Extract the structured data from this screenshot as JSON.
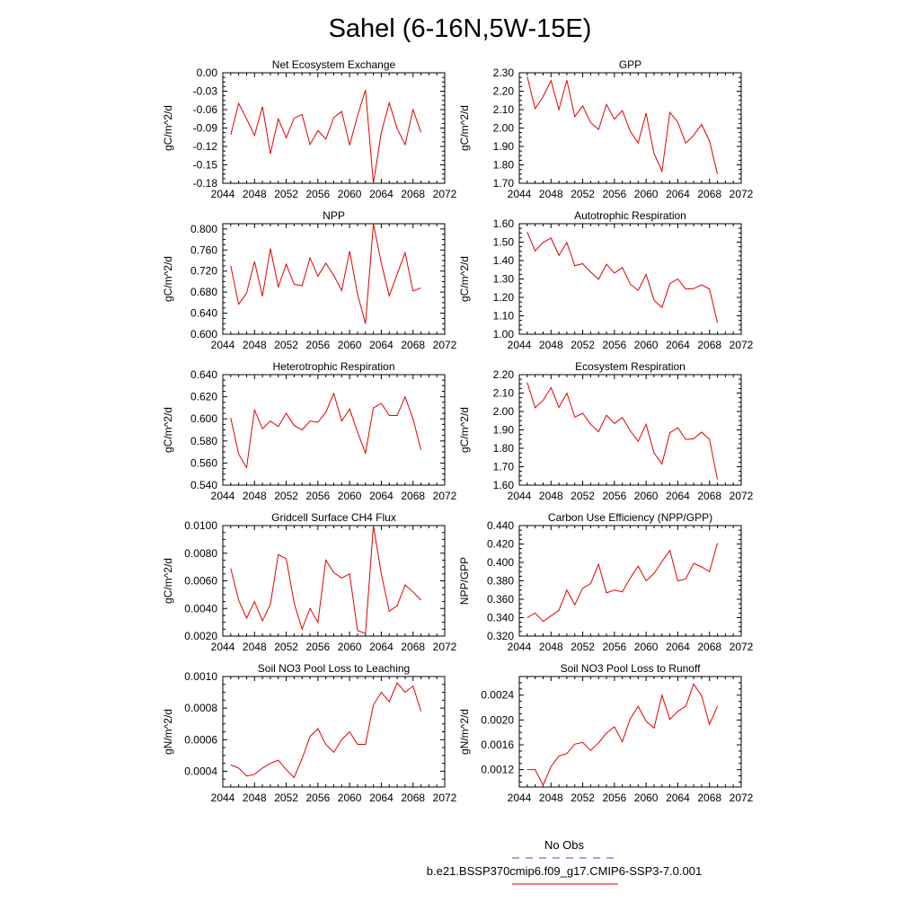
{
  "page": {
    "title": "Sahel (6-16N,5W-15E)"
  },
  "legend": {
    "entries": [
      {
        "label": "No Obs",
        "color": "#4a4ad8",
        "style": "dashed"
      },
      {
        "label": "b.e21.BSSP370cmip6.f09_g17.CMIP6-SSP3-7.0.001",
        "color": "#e00000",
        "style": "solid"
      }
    ]
  },
  "chart_data": [
    {
      "type": "line",
      "title": "Net Ecosystem Exchange",
      "xlabel": "",
      "ylabel": "gC/m^2/d",
      "xlim": [
        2044,
        2072
      ],
      "ylim": [
        -0.18,
        0.0
      ],
      "xticks": [
        "2044",
        "2048",
        "2052",
        "2056",
        "2060",
        "2064",
        "2068",
        "2072"
      ],
      "yticks": [
        "0.00",
        "-0.03",
        "-0.06",
        "-0.09",
        "-0.12",
        "-0.15",
        "-0.18"
      ],
      "x": [
        2045,
        2046,
        2047,
        2048,
        2049,
        2050,
        2051,
        2052,
        2053,
        2054,
        2055,
        2056,
        2057,
        2058,
        2059,
        2060,
        2061,
        2062,
        2063,
        2064,
        2065,
        2066,
        2067,
        2068,
        2069
      ],
      "series": [
        {
          "values": [
            -0.101,
            -0.05,
            -0.075,
            -0.102,
            -0.055,
            -0.132,
            -0.075,
            -0.106,
            -0.074,
            -0.068,
            -0.117,
            -0.094,
            -0.108,
            -0.073,
            -0.063,
            -0.118,
            -0.07,
            -0.028,
            -0.18,
            -0.097,
            -0.049,
            -0.091,
            -0.117,
            -0.06,
            -0.097
          ],
          "color": "#e00000"
        }
      ]
    },
    {
      "type": "line",
      "title": "GPP",
      "xlabel": "",
      "ylabel": "gC/m^2/d",
      "xlim": [
        2044,
        2072
      ],
      "ylim": [
        1.7,
        2.3
      ],
      "xticks": [
        "2044",
        "2048",
        "2052",
        "2056",
        "2060",
        "2064",
        "2068",
        "2072"
      ],
      "yticks": [
        "2.30",
        "2.20",
        "2.10",
        "2.00",
        "1.90",
        "1.80",
        "1.70"
      ],
      "x": [
        2045,
        2046,
        2047,
        2048,
        2049,
        2050,
        2051,
        2052,
        2053,
        2054,
        2055,
        2056,
        2057,
        2058,
        2059,
        2060,
        2061,
        2062,
        2063,
        2064,
        2065,
        2066,
        2067,
        2068,
        2069
      ],
      "series": [
        {
          "values": [
            2.28,
            2.105,
            2.17,
            2.258,
            2.1,
            2.26,
            2.062,
            2.12,
            2.03,
            1.992,
            2.128,
            2.048,
            2.095,
            1.982,
            1.92,
            2.08,
            1.862,
            1.765,
            2.085,
            2.032,
            1.918,
            1.96,
            2.02,
            1.93,
            1.75
          ],
          "color": "#e00000"
        }
      ]
    },
    {
      "type": "line",
      "title": "NPP",
      "xlabel": "",
      "ylabel": "gC/m^2/d",
      "xlim": [
        2044,
        2072
      ],
      "ylim": [
        0.6,
        0.81
      ],
      "xticks": [
        "2044",
        "2048",
        "2052",
        "2056",
        "2060",
        "2064",
        "2068",
        "2072"
      ],
      "yticks": [
        "0.800",
        "0.760",
        "0.720",
        "0.680",
        "0.640",
        "0.600"
      ],
      "x": [
        2045,
        2046,
        2047,
        2048,
        2049,
        2050,
        2051,
        2052,
        2053,
        2054,
        2055,
        2056,
        2057,
        2058,
        2059,
        2060,
        2061,
        2062,
        2063,
        2064,
        2065,
        2066,
        2067,
        2068,
        2069
      ],
      "series": [
        {
          "values": [
            0.73,
            0.657,
            0.678,
            0.738,
            0.672,
            0.763,
            0.69,
            0.733,
            0.695,
            0.692,
            0.745,
            0.71,
            0.735,
            0.712,
            0.683,
            0.758,
            0.676,
            0.62,
            0.81,
            0.735,
            0.673,
            0.714,
            0.755,
            0.682,
            0.688
          ],
          "color": "#e00000"
        }
      ]
    },
    {
      "type": "line",
      "title": "Autotrophic Respiration",
      "xlabel": "",
      "ylabel": "gC/m^2/d",
      "xlim": [
        2044,
        2072
      ],
      "ylim": [
        1.0,
        1.6
      ],
      "xticks": [
        "2044",
        "2048",
        "2052",
        "2056",
        "2060",
        "2064",
        "2068",
        "2072"
      ],
      "yticks": [
        "1.60",
        "1.50",
        "1.40",
        "1.30",
        "1.20",
        "1.10",
        "1.00"
      ],
      "x": [
        2045,
        2046,
        2047,
        2048,
        2049,
        2050,
        2051,
        2052,
        2053,
        2054,
        2055,
        2056,
        2057,
        2058,
        2059,
        2060,
        2061,
        2062,
        2063,
        2064,
        2065,
        2066,
        2067,
        2068,
        2069
      ],
      "series": [
        {
          "values": [
            1.555,
            1.452,
            1.498,
            1.522,
            1.428,
            1.498,
            1.372,
            1.383,
            1.338,
            1.298,
            1.38,
            1.332,
            1.362,
            1.272,
            1.238,
            1.325,
            1.185,
            1.145,
            1.275,
            1.3,
            1.245,
            1.248,
            1.268,
            1.245,
            1.062
          ],
          "color": "#e00000"
        }
      ]
    },
    {
      "type": "line",
      "title": "Heterotrophic Respiration",
      "xlabel": "",
      "ylabel": "gC/m^2/d",
      "xlim": [
        2044,
        2072
      ],
      "ylim": [
        0.54,
        0.64
      ],
      "xticks": [
        "2044",
        "2048",
        "2052",
        "2056",
        "2060",
        "2064",
        "2068",
        "2072"
      ],
      "yticks": [
        "0.640",
        "0.620",
        "0.600",
        "0.580",
        "0.560",
        "0.540"
      ],
      "x": [
        2045,
        2046,
        2047,
        2048,
        2049,
        2050,
        2051,
        2052,
        2053,
        2054,
        2055,
        2056,
        2057,
        2058,
        2059,
        2060,
        2061,
        2062,
        2063,
        2064,
        2065,
        2066,
        2067,
        2068,
        2069
      ],
      "series": [
        {
          "values": [
            0.601,
            0.568,
            0.556,
            0.608,
            0.591,
            0.598,
            0.593,
            0.605,
            0.594,
            0.59,
            0.598,
            0.597,
            0.606,
            0.623,
            0.598,
            0.609,
            0.588,
            0.569,
            0.61,
            0.614,
            0.603,
            0.603,
            0.62,
            0.6,
            0.572
          ],
          "color": "#e00000"
        }
      ]
    },
    {
      "type": "line",
      "title": "Ecosystem Respiration",
      "xlabel": "",
      "ylabel": "gC/m^2/d",
      "xlim": [
        2044,
        2072
      ],
      "ylim": [
        1.6,
        2.2
      ],
      "xticks": [
        "2044",
        "2048",
        "2052",
        "2056",
        "2060",
        "2064",
        "2068",
        "2072"
      ],
      "yticks": [
        "2.20",
        "2.10",
        "2.00",
        "1.90",
        "1.80",
        "1.70",
        "1.60"
      ],
      "x": [
        2045,
        2046,
        2047,
        2048,
        2049,
        2050,
        2051,
        2052,
        2053,
        2054,
        2055,
        2056,
        2057,
        2058,
        2059,
        2060,
        2061,
        2062,
        2063,
        2064,
        2065,
        2066,
        2067,
        2068,
        2069
      ],
      "series": [
        {
          "values": [
            2.158,
            2.02,
            2.06,
            2.13,
            2.022,
            2.1,
            1.97,
            1.99,
            1.93,
            1.89,
            1.98,
            1.935,
            1.968,
            1.895,
            1.838,
            1.93,
            1.775,
            1.715,
            1.885,
            1.912,
            1.848,
            1.852,
            1.888,
            1.848,
            1.632
          ],
          "color": "#e00000"
        }
      ]
    },
    {
      "type": "line",
      "title": "Gridcell Surface CH4 Flux",
      "xlabel": "",
      "ylabel": "gC/m^2/d",
      "xlim": [
        2044,
        2072
      ],
      "ylim": [
        0.002,
        0.01
      ],
      "xticks": [
        "2044",
        "2048",
        "2052",
        "2056",
        "2060",
        "2064",
        "2068",
        "2072"
      ],
      "yticks": [
        "0.0100",
        "0.0080",
        "0.0060",
        "0.0040",
        "0.0020"
      ],
      "x": [
        2045,
        2046,
        2047,
        2048,
        2049,
        2050,
        2051,
        2052,
        2053,
        2054,
        2055,
        2056,
        2057,
        2058,
        2059,
        2060,
        2061,
        2062,
        2063,
        2064,
        2065,
        2066,
        2067,
        2068,
        2069
      ],
      "series": [
        {
          "values": [
            0.0069,
            0.0046,
            0.0033,
            0.0045,
            0.0031,
            0.0043,
            0.0079,
            0.0076,
            0.0044,
            0.0025,
            0.004,
            0.003,
            0.0075,
            0.0066,
            0.0062,
            0.0065,
            0.0024,
            0.0022,
            0.01,
            0.0065,
            0.0038,
            0.0042,
            0.0057,
            0.0052,
            0.0046
          ],
          "color": "#e00000"
        }
      ]
    },
    {
      "type": "line",
      "title": "Carbon Use Efficiency (NPP/GPP)",
      "xlabel": "",
      "ylabel": "NPP/GPP",
      "xlim": [
        2044,
        2072
      ],
      "ylim": [
        0.32,
        0.44
      ],
      "xticks": [
        "2044",
        "2048",
        "2052",
        "2056",
        "2060",
        "2064",
        "2068",
        "2072"
      ],
      "yticks": [
        "0.440",
        "0.420",
        "0.400",
        "0.380",
        "0.360",
        "0.340",
        "0.320"
      ],
      "x": [
        2045,
        2046,
        2047,
        2048,
        2049,
        2050,
        2051,
        2052,
        2053,
        2054,
        2055,
        2056,
        2057,
        2058,
        2059,
        2060,
        2061,
        2062,
        2063,
        2064,
        2065,
        2066,
        2067,
        2068,
        2069
      ],
      "series": [
        {
          "values": [
            0.34,
            0.345,
            0.336,
            0.342,
            0.348,
            0.37,
            0.354,
            0.372,
            0.377,
            0.398,
            0.367,
            0.37,
            0.368,
            0.383,
            0.396,
            0.38,
            0.388,
            0.401,
            0.413,
            0.38,
            0.382,
            0.399,
            0.395,
            0.39,
            0.421
          ],
          "color": "#e00000"
        }
      ]
    },
    {
      "type": "line",
      "title": "Soil NO3 Pool Loss to Leaching",
      "xlabel": "",
      "ylabel": "gN/m^2/d",
      "xlim": [
        2044,
        2072
      ],
      "ylim": [
        0.0003,
        0.001
      ],
      "xticks": [
        "2044",
        "2048",
        "2052",
        "2056",
        "2060",
        "2064",
        "2068",
        "2072"
      ],
      "yticks": [
        "0.0010",
        "0.0008",
        "0.0006",
        "0.0004"
      ],
      "x": [
        2045,
        2046,
        2047,
        2048,
        2049,
        2050,
        2051,
        2052,
        2053,
        2054,
        2055,
        2056,
        2057,
        2058,
        2059,
        2060,
        2061,
        2062,
        2063,
        2064,
        2065,
        2066,
        2067,
        2068,
        2069
      ],
      "series": [
        {
          "values": [
            0.00044,
            0.00042,
            0.00037,
            0.00038,
            0.00042,
            0.00045,
            0.00047,
            0.00041,
            0.00036,
            0.00048,
            0.00062,
            0.00067,
            0.00057,
            0.00052,
            0.0006,
            0.00065,
            0.00057,
            0.00057,
            0.00082,
            0.0009,
            0.00084,
            0.00096,
            0.0009,
            0.00094,
            0.00078
          ],
          "color": "#e00000"
        }
      ]
    },
    {
      "type": "line",
      "title": "Soil NO3 Pool Loss to Runoff",
      "xlabel": "",
      "ylabel": "gN/m^2/d",
      "xlim": [
        2044,
        2072
      ],
      "ylim": [
        0.00092,
        0.0027
      ],
      "xticks": [
        "2044",
        "2048",
        "2052",
        "2056",
        "2060",
        "2064",
        "2068",
        "2072"
      ],
      "yticks": [
        "0.0024",
        "0.0020",
        "0.0016",
        "0.0012"
      ],
      "x": [
        2045,
        2046,
        2047,
        2048,
        2049,
        2050,
        2051,
        2052,
        2053,
        2054,
        2055,
        2056,
        2057,
        2058,
        2059,
        2060,
        2061,
        2062,
        2063,
        2064,
        2065,
        2066,
        2067,
        2068,
        2069
      ],
      "series": [
        {
          "values": [
            0.0012,
            0.0012,
            0.00095,
            0.00125,
            0.00142,
            0.00146,
            0.00161,
            0.00164,
            0.00151,
            0.00163,
            0.00179,
            0.00189,
            0.00165,
            0.00202,
            0.00222,
            0.00198,
            0.00187,
            0.0024,
            0.00201,
            0.00214,
            0.00222,
            0.00258,
            0.00239,
            0.00193,
            0.00222
          ],
          "color": "#e00000"
        }
      ]
    }
  ]
}
